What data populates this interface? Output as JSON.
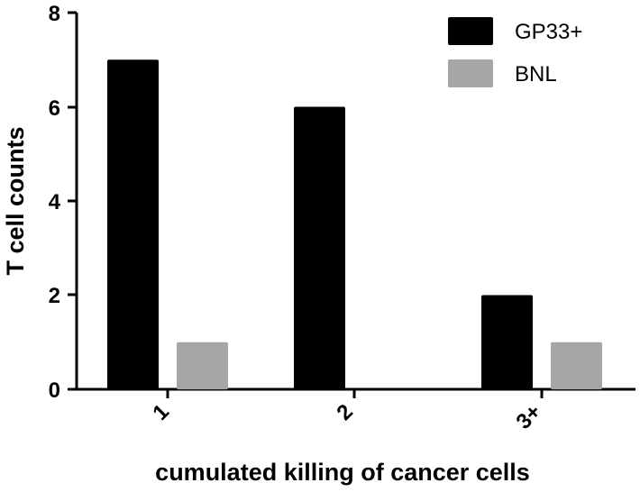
{
  "chart_data": {
    "type": "bar",
    "title": "",
    "xlabel": "cumulated killing of cancer cells",
    "ylabel": "T cell counts",
    "categories": [
      "1",
      "2",
      "3+"
    ],
    "series": [
      {
        "name": "GP33+",
        "color": "#000000",
        "values": [
          7,
          6,
          2
        ]
      },
      {
        "name": "BNL",
        "color": "#a6a6a6",
        "values": [
          1,
          0,
          1
        ]
      }
    ],
    "ylim": [
      0,
      8
    ],
    "yticks": [
      "0",
      "2",
      "4",
      "6",
      "8"
    ],
    "grid": false,
    "legend": "top-right"
  }
}
